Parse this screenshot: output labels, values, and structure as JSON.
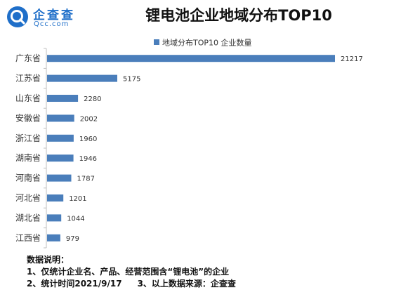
{
  "brand": {
    "name_cn": "企查查",
    "name_en": "Qcc.com",
    "color": "#1f6fc9"
  },
  "chart_data": {
    "type": "bar",
    "orientation": "horizontal",
    "title": "锂电池企业地域分布TOP10",
    "categories": [
      "广东省",
      "江苏省",
      "山东省",
      "安徽省",
      "浙江省",
      "湖南省",
      "河南省",
      "河北省",
      "湖北省",
      "江西省"
    ],
    "series": [
      {
        "name": "地域分布TOP10 企业数量",
        "values": [
          21217,
          5175,
          2280,
          2002,
          1960,
          1946,
          1787,
          1201,
          1044,
          979
        ],
        "color": "#4a7ebb"
      }
    ],
    "xlim": [
      0,
      21217
    ],
    "grid": false,
    "legend_position": "top"
  },
  "notes": {
    "heading": "数据说明：",
    "line1": "1、仅统计企业名、产品、经营范围含“锂电池”的企业",
    "line2a": "2、统计时间2021/9/17",
    "line2b": "3、以上数据来源：企查查"
  }
}
